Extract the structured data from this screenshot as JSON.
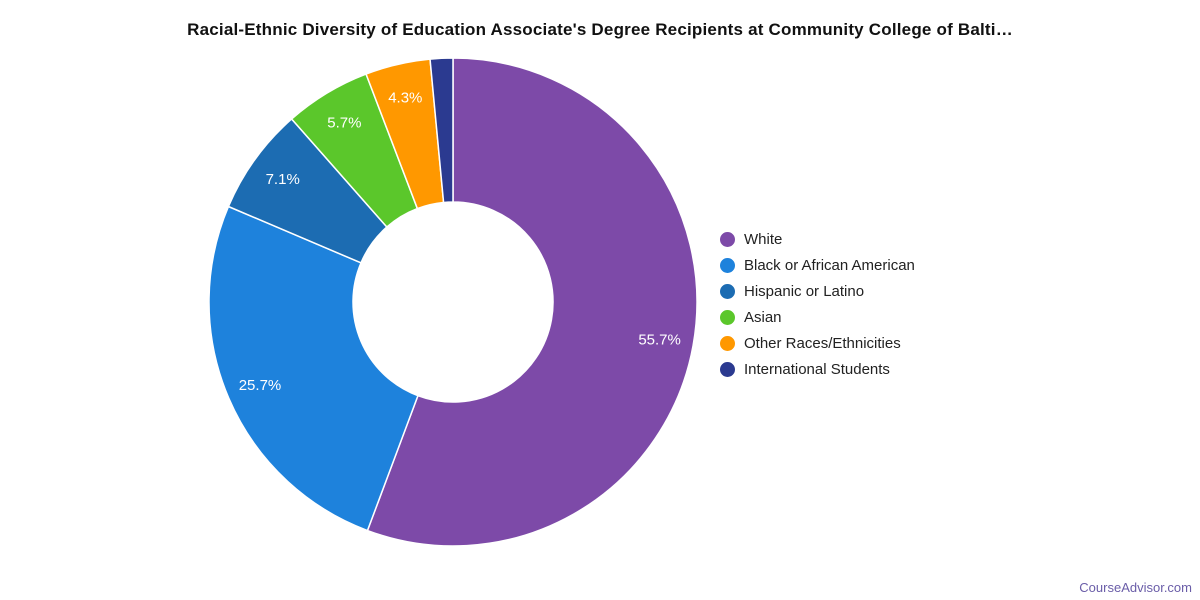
{
  "chart_data": {
    "type": "pie",
    "subtype": "donut",
    "title": "Racial-Ethnic Diversity of Education Associate's Degree Recipients at Community College of Balti…",
    "start_angle_deg": 0,
    "direction": "clockwise",
    "legend_position": "right",
    "slice_border_color": "#ffffff",
    "series": [
      {
        "name": "White",
        "value": 55.7,
        "label": "55.7%",
        "color": "#7d4aa8"
      },
      {
        "name": "Black or African American",
        "value": 25.7,
        "label": "25.7%",
        "color": "#1e82dc"
      },
      {
        "name": "Hispanic or Latino",
        "value": 7.1,
        "label": "7.1%",
        "color": "#1c6cb2"
      },
      {
        "name": "Asian",
        "value": 5.7,
        "label": "5.7%",
        "color": "#5bc72b"
      },
      {
        "name": "Other Races/Ethnicities",
        "value": 4.3,
        "label": "4.3%",
        "color": "#ff9800"
      },
      {
        "name": "International Students",
        "value": 1.5,
        "label": null,
        "color": "#2b3a90"
      }
    ]
  },
  "watermark": {
    "text": "CourseAdvisor.com",
    "color": "#6a5da8"
  }
}
